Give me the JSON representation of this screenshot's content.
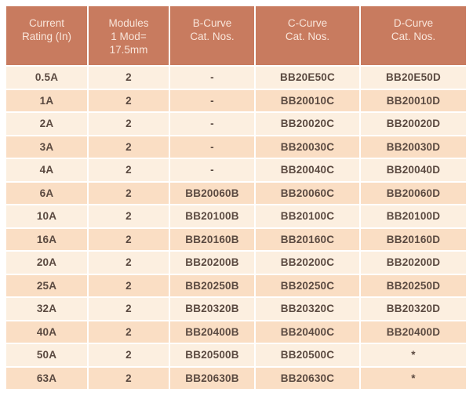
{
  "colors": {
    "page_bg": "#ffffff",
    "header_bg": "#c87b5f",
    "header_text": "#f9e6db",
    "row_light": "#fcefe0",
    "row_dark": "#fadec4",
    "body_text": "#5b4a41",
    "separator": "#fdf9f3"
  },
  "chart_data": {
    "type": "table",
    "columns": [
      "Current Rating (In)",
      "Modules 1 Mod= 17.5mm",
      "B-Curve Cat. Nos.",
      "C-Curve Cat. Nos.",
      "D-Curve Cat. Nos."
    ],
    "header_display": [
      "Current\nRating (In)",
      "Modules\n1 Mod=\n17.5mm",
      "B-Curve\nCat. Nos.",
      "C-Curve\nCat. Nos.",
      "D-Curve\nCat. Nos."
    ],
    "rows": [
      [
        "0.5A",
        "2",
        "-",
        "BB20E50C",
        "BB20E50D"
      ],
      [
        "1A",
        "2",
        "-",
        "BB20010C",
        "BB20010D"
      ],
      [
        "2A",
        "2",
        "-",
        "BB20020C",
        "BB20020D"
      ],
      [
        "3A",
        "2",
        "-",
        "BB20030C",
        "BB20030D"
      ],
      [
        "4A",
        "2",
        "-",
        "BB20040C",
        "BB20040D"
      ],
      [
        "6A",
        "2",
        "BB20060B",
        "BB20060C",
        "BB20060D"
      ],
      [
        "10A",
        "2",
        "BB20100B",
        "BB20100C",
        "BB20100D"
      ],
      [
        "16A",
        "2",
        "BB20160B",
        "BB20160C",
        "BB20160D"
      ],
      [
        "20A",
        "2",
        "BB20200B",
        "BB20200C",
        "BB20200D"
      ],
      [
        "25A",
        "2",
        "BB20250B",
        "BB20250C",
        "BB20250D"
      ],
      [
        "32A",
        "2",
        "BB20320B",
        "BB20320C",
        "BB20320D"
      ],
      [
        "40A",
        "2",
        "BB20400B",
        "BB20400C",
        "BB20400D"
      ],
      [
        "50A",
        "2",
        "BB20500B",
        "BB20500C",
        "*"
      ],
      [
        "63A",
        "2",
        "BB20630B",
        "BB20630C",
        "*"
      ]
    ]
  }
}
